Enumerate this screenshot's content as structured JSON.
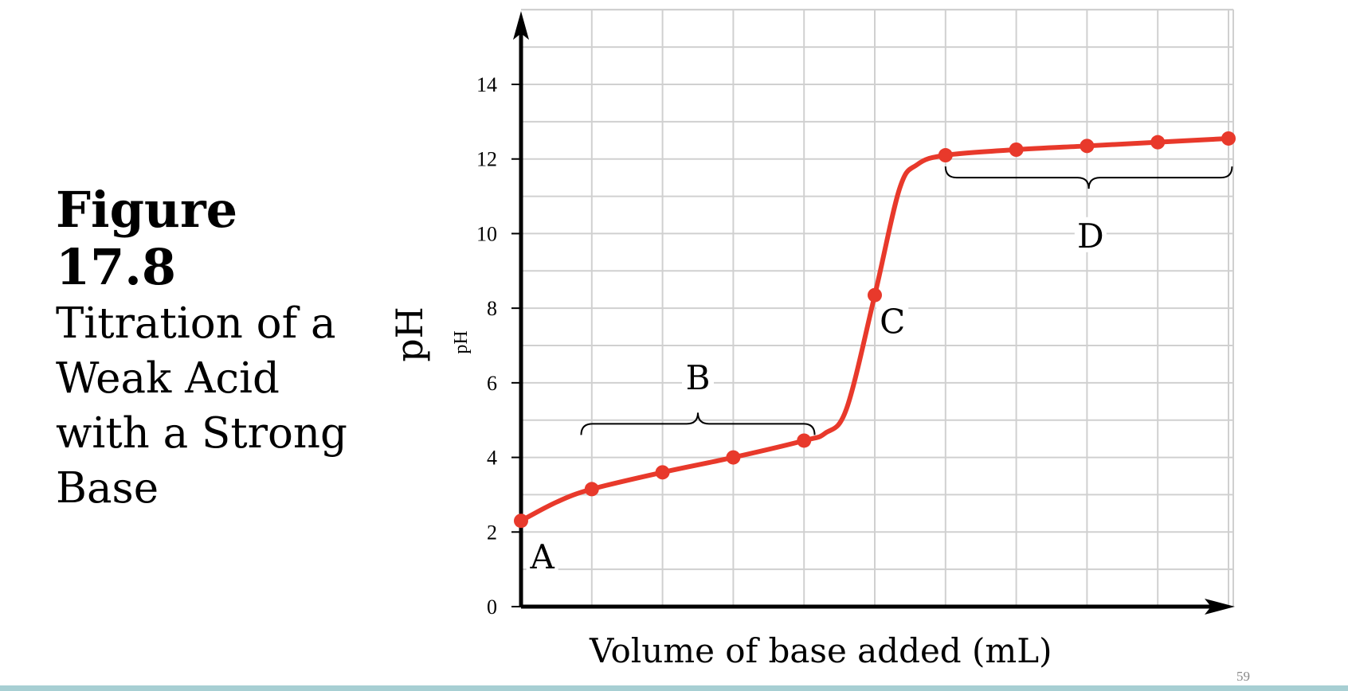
{
  "caption": {
    "figure_number": "Figure 17.8",
    "title_lines": [
      "Titration of a",
      "Weak Acid",
      "with a Strong",
      "Base"
    ]
  },
  "page_number": "59",
  "chart_data": {
    "type": "line",
    "title": "",
    "xlabel": "Volume of base added (mL)",
    "ylabel": "pH",
    "ylabel_small": "pH",
    "ylim": [
      0,
      15
    ],
    "xlim": [
      0,
      10
    ],
    "yticks": [
      0,
      2,
      4,
      6,
      8,
      10,
      12,
      14
    ],
    "xticks_labeled": false,
    "grid": true,
    "color": "#e8392b",
    "markers": [
      {
        "x": 0,
        "y": 2.3
      },
      {
        "x": 1,
        "y": 3.15
      },
      {
        "x": 2,
        "y": 3.6
      },
      {
        "x": 3,
        "y": 4.0
      },
      {
        "x": 4,
        "y": 4.45
      },
      {
        "x": 5,
        "y": 8.35
      },
      {
        "x": 6,
        "y": 12.1
      },
      {
        "x": 7,
        "y": 12.25
      },
      {
        "x": 8,
        "y": 12.35
      },
      {
        "x": 9,
        "y": 12.45
      },
      {
        "x": 10,
        "y": 12.55
      }
    ],
    "curve": [
      {
        "x": 0,
        "y": 2.3
      },
      {
        "x": 0.5,
        "y": 2.8
      },
      {
        "x": 1,
        "y": 3.15
      },
      {
        "x": 2,
        "y": 3.6
      },
      {
        "x": 3,
        "y": 4.0
      },
      {
        "x": 4,
        "y": 4.45
      },
      {
        "x": 4.3,
        "y": 4.65
      },
      {
        "x": 4.6,
        "y": 5.3
      },
      {
        "x": 5,
        "y": 8.35
      },
      {
        "x": 5.35,
        "y": 11.2
      },
      {
        "x": 5.6,
        "y": 11.85
      },
      {
        "x": 6,
        "y": 12.1
      },
      {
        "x": 7,
        "y": 12.25
      },
      {
        "x": 8,
        "y": 12.35
      },
      {
        "x": 9,
        "y": 12.45
      },
      {
        "x": 10,
        "y": 12.55
      }
    ],
    "annotations": [
      {
        "label": "A",
        "x": 0.3,
        "y": 1.2
      },
      {
        "label": "B",
        "x": 2.5,
        "y": 6.0
      },
      {
        "label": "C",
        "x": 5.25,
        "y": 7.5
      },
      {
        "label": "D",
        "x": 8.05,
        "y": 9.8
      }
    ],
    "brackets": [
      {
        "label": "B",
        "x_start": 0.85,
        "x_end": 4.15,
        "y": 4.9,
        "opens": "down"
      },
      {
        "label": "D",
        "x_start": 6.0,
        "x_end": 10.05,
        "y": 11.5,
        "opens": "up"
      }
    ]
  }
}
